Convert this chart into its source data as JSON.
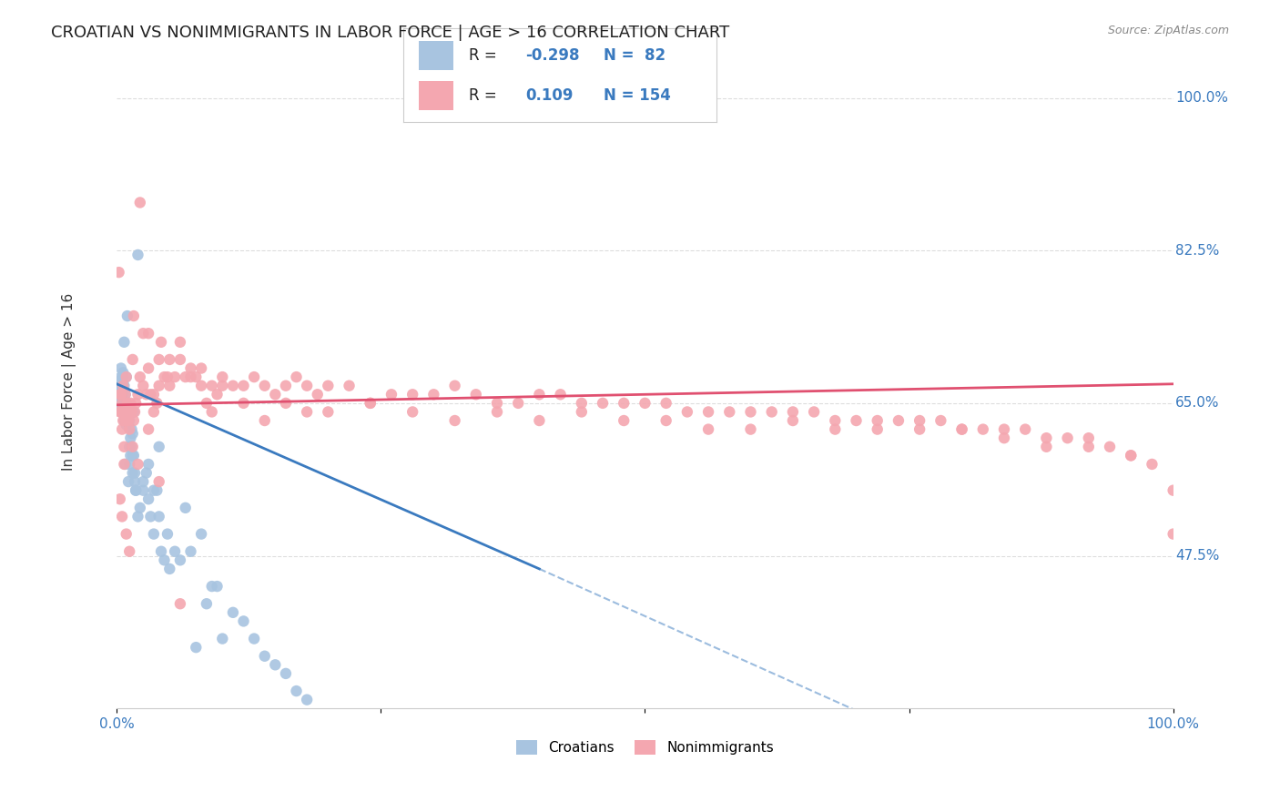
{
  "title": "CROATIAN VS NONIMMIGRANTS IN LABOR FORCE | AGE > 16 CORRELATION CHART",
  "source": "Source: ZipAtlas.com",
  "ylabel": "In Labor Force | Age > 16",
  "xlim": [
    0.0,
    1.0
  ],
  "ylim": [
    0.3,
    1.05
  ],
  "yticks": [
    0.475,
    0.65,
    0.825,
    1.0
  ],
  "ytick_labels": [
    "47.5%",
    "65.0%",
    "82.5%",
    "100.0%"
  ],
  "croatian_color": "#a8c4e0",
  "nonimmigrant_color": "#f4a7b0",
  "croatian_line_color": "#3a7abf",
  "nonimmigrant_line_color": "#e05070",
  "R_croatian": -0.298,
  "N_croatian": 82,
  "R_nonimmigrant": 0.109,
  "N_nonimmigrant": 154,
  "background_color": "#ffffff",
  "grid_color": "#dddddd",
  "title_fontsize": 13,
  "axis_label_color": "#3a7abf",
  "legend_text_color": "#3a7abf",
  "croatian_scatter": {
    "x": [
      0.002,
      0.003,
      0.003,
      0.004,
      0.004,
      0.005,
      0.005,
      0.005,
      0.006,
      0.006,
      0.007,
      0.007,
      0.007,
      0.008,
      0.008,
      0.009,
      0.009,
      0.01,
      0.01,
      0.011,
      0.012,
      0.012,
      0.013,
      0.014,
      0.015,
      0.015,
      0.016,
      0.017,
      0.018,
      0.02,
      0.022,
      0.025,
      0.028,
      0.03,
      0.032,
      0.035,
      0.038,
      0.04,
      0.042,
      0.045,
      0.048,
      0.05,
      0.055,
      0.06,
      0.065,
      0.07,
      0.075,
      0.08,
      0.085,
      0.09,
      0.095,
      0.1,
      0.11,
      0.12,
      0.13,
      0.14,
      0.15,
      0.16,
      0.17,
      0.18,
      0.002,
      0.003,
      0.004,
      0.005,
      0.006,
      0.007,
      0.008,
      0.009,
      0.01,
      0.011,
      0.012,
      0.013,
      0.014,
      0.015,
      0.016,
      0.017,
      0.018,
      0.02,
      0.025,
      0.03,
      0.035,
      0.04
    ],
    "y": [
      0.665,
      0.67,
      0.66,
      0.68,
      0.655,
      0.66,
      0.67,
      0.65,
      0.68,
      0.66,
      0.72,
      0.67,
      0.65,
      0.66,
      0.64,
      0.68,
      0.65,
      0.75,
      0.63,
      0.64,
      0.6,
      0.58,
      0.61,
      0.62,
      0.57,
      0.59,
      0.64,
      0.56,
      0.55,
      0.82,
      0.53,
      0.55,
      0.57,
      0.54,
      0.52,
      0.5,
      0.55,
      0.52,
      0.48,
      0.47,
      0.5,
      0.46,
      0.48,
      0.47,
      0.53,
      0.48,
      0.37,
      0.5,
      0.42,
      0.44,
      0.44,
      0.38,
      0.41,
      0.4,
      0.38,
      0.36,
      0.35,
      0.34,
      0.32,
      0.31,
      0.675,
      0.655,
      0.69,
      0.645,
      0.685,
      0.63,
      0.58,
      0.625,
      0.635,
      0.56,
      0.63,
      0.59,
      0.6,
      0.615,
      0.59,
      0.57,
      0.55,
      0.52,
      0.56,
      0.58,
      0.55,
      0.6
    ]
  },
  "nonimmigrant_scatter": {
    "x": [
      0.002,
      0.003,
      0.004,
      0.005,
      0.006,
      0.007,
      0.008,
      0.009,
      0.01,
      0.011,
      0.012,
      0.013,
      0.014,
      0.015,
      0.016,
      0.017,
      0.018,
      0.02,
      0.022,
      0.025,
      0.028,
      0.03,
      0.032,
      0.035,
      0.038,
      0.04,
      0.042,
      0.045,
      0.048,
      0.05,
      0.055,
      0.06,
      0.065,
      0.07,
      0.075,
      0.08,
      0.085,
      0.09,
      0.095,
      0.1,
      0.11,
      0.12,
      0.13,
      0.14,
      0.15,
      0.16,
      0.17,
      0.18,
      0.19,
      0.2,
      0.22,
      0.24,
      0.26,
      0.28,
      0.3,
      0.32,
      0.34,
      0.36,
      0.38,
      0.4,
      0.42,
      0.44,
      0.46,
      0.48,
      0.5,
      0.52,
      0.54,
      0.56,
      0.58,
      0.6,
      0.62,
      0.64,
      0.66,
      0.68,
      0.7,
      0.72,
      0.74,
      0.76,
      0.78,
      0.8,
      0.82,
      0.84,
      0.86,
      0.88,
      0.9,
      0.92,
      0.94,
      0.96,
      0.98,
      1.0,
      0.003,
      0.004,
      0.005,
      0.006,
      0.007,
      0.008,
      0.012,
      0.015,
      0.02,
      0.025,
      0.03,
      0.035,
      0.04,
      0.05,
      0.06,
      0.07,
      0.08,
      0.09,
      0.1,
      0.12,
      0.14,
      0.16,
      0.18,
      0.2,
      0.24,
      0.28,
      0.32,
      0.36,
      0.4,
      0.44,
      0.48,
      0.52,
      0.56,
      0.6,
      0.64,
      0.68,
      0.72,
      0.76,
      0.8,
      0.84,
      0.88,
      0.92,
      0.96,
      1.0,
      0.003,
      0.005,
      0.007,
      0.009,
      0.012,
      0.016,
      0.022,
      0.03,
      0.04,
      0.06
    ],
    "y": [
      0.8,
      0.66,
      0.64,
      0.65,
      0.63,
      0.64,
      0.66,
      0.68,
      0.65,
      0.63,
      0.64,
      0.65,
      0.64,
      0.7,
      0.63,
      0.64,
      0.65,
      0.66,
      0.68,
      0.67,
      0.66,
      0.73,
      0.66,
      0.64,
      0.65,
      0.7,
      0.72,
      0.68,
      0.68,
      0.67,
      0.68,
      0.7,
      0.68,
      0.69,
      0.68,
      0.67,
      0.65,
      0.67,
      0.66,
      0.67,
      0.67,
      0.67,
      0.68,
      0.67,
      0.66,
      0.67,
      0.68,
      0.67,
      0.66,
      0.67,
      0.67,
      0.65,
      0.66,
      0.66,
      0.66,
      0.67,
      0.66,
      0.65,
      0.65,
      0.66,
      0.66,
      0.65,
      0.65,
      0.65,
      0.65,
      0.65,
      0.64,
      0.64,
      0.64,
      0.64,
      0.64,
      0.64,
      0.64,
      0.63,
      0.63,
      0.63,
      0.63,
      0.63,
      0.63,
      0.62,
      0.62,
      0.62,
      0.62,
      0.61,
      0.61,
      0.61,
      0.6,
      0.59,
      0.58,
      0.5,
      0.64,
      0.66,
      0.62,
      0.67,
      0.6,
      0.63,
      0.62,
      0.6,
      0.58,
      0.73,
      0.69,
      0.66,
      0.67,
      0.7,
      0.72,
      0.68,
      0.69,
      0.64,
      0.68,
      0.65,
      0.63,
      0.65,
      0.64,
      0.64,
      0.65,
      0.64,
      0.63,
      0.64,
      0.63,
      0.64,
      0.63,
      0.63,
      0.62,
      0.62,
      0.63,
      0.62,
      0.62,
      0.62,
      0.62,
      0.61,
      0.6,
      0.6,
      0.59,
      0.55,
      0.54,
      0.52,
      0.58,
      0.5,
      0.48,
      0.75,
      0.88,
      0.62,
      0.56,
      0.42
    ]
  },
  "croatian_trend": {
    "x_start": 0.0,
    "y_start": 0.672,
    "x_end": 0.4,
    "y_end": 0.46
  },
  "croatian_trend_dashed": {
    "x_start": 0.4,
    "y_start": 0.46,
    "x_end": 1.0,
    "y_end": 0.135
  },
  "nonimmigrant_trend": {
    "x_start": 0.0,
    "y_start": 0.648,
    "x_end": 1.0,
    "y_end": 0.672
  }
}
